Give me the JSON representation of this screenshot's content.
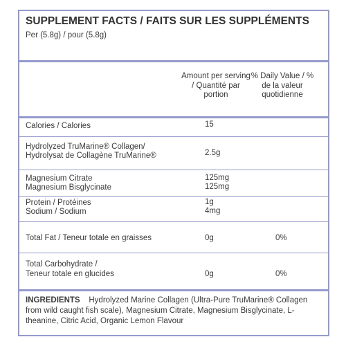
{
  "header": {
    "title": "SUPPLEMENT FACTS / FAITS SUR LES SUPPLÉMENTS",
    "serving": "Per (5.8g) / pour (5.8g)"
  },
  "table": {
    "columns": [
      "Amount per serving / Quantité par portion",
      "% Daily Value / % de la valeur quotidienne"
    ],
    "rows": [
      {
        "label": [
          "Calories / Calories"
        ],
        "amount": [
          "15"
        ]
      },
      {
        "label": [
          "Hydrolyzed TruMarine® Collagen/",
          "Hydrolysat de Collagène TruMarine®"
        ],
        "amount": [
          "2.5g"
        ]
      },
      {
        "label": [
          "Magnesium Citrate",
          "Magnesium Bisglycinate"
        ],
        "amount": [
          "125mg",
          "125mg"
        ]
      },
      {
        "label": [
          "Protein / Protéines",
          "Sodium / Sodium"
        ],
        "amount": [
          "1g",
          "4mg"
        ]
      },
      {
        "label": [
          "Total Fat / Teneur totale en graisses"
        ],
        "amount": [
          "0g"
        ],
        "dv": [
          "0%"
        ]
      },
      {
        "label": [
          "Total Carbohydrate /",
          "Teneur totale en glucides"
        ],
        "amount": [
          "0g"
        ],
        "dv": [
          "0%"
        ]
      }
    ]
  },
  "ingredients": {
    "heading": "INGREDIENTS",
    "text": "Hydrolyzed Marine Collagen (Ultra-Pure TruMarine® Collagen from wild caught fish scale), Magnesium Citrate, Magnesium Bisglycinate, L-theanine, Citric Acid, Organic Lemon Flavour"
  }
}
